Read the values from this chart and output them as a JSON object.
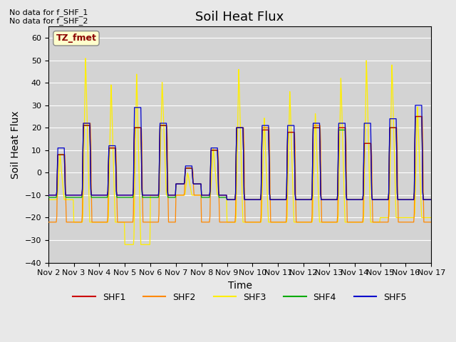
{
  "title": "Soil Heat Flux",
  "ylabel": "Soil Heat Flux",
  "xlabel": "Time",
  "annotations": [
    "No data for f_SHF_1",
    "No data for f_SHF_2"
  ],
  "legend_box_text": "TZ_fmet",
  "ylim": [
    -40,
    65
  ],
  "yticks": [
    -40,
    -30,
    -20,
    -10,
    0,
    10,
    20,
    30,
    40,
    50,
    60
  ],
  "xtick_labels": [
    "Nov 2",
    "Nov 3",
    "Nov 4",
    "Nov 5",
    "Nov 6",
    "Nov 7",
    "Nov 8",
    "Nov 9",
    "Nov 10",
    "Nov 11",
    "Nov 12",
    "Nov 13",
    "Nov 14",
    "Nov 15",
    "Nov 16",
    "Nov 17"
  ],
  "series_colors": {
    "SHF1": "#cc0000",
    "SHF2": "#ff8800",
    "SHF3": "#ffee00",
    "SHF4": "#00aa00",
    "SHF5": "#0000cc"
  },
  "background_color": "#e8e8e8",
  "plot_bg_color": "#d3d3d3",
  "title_fontsize": 13,
  "axis_label_fontsize": 10,
  "tick_fontsize": 8,
  "n_days": 15,
  "pts_per_day": 48
}
